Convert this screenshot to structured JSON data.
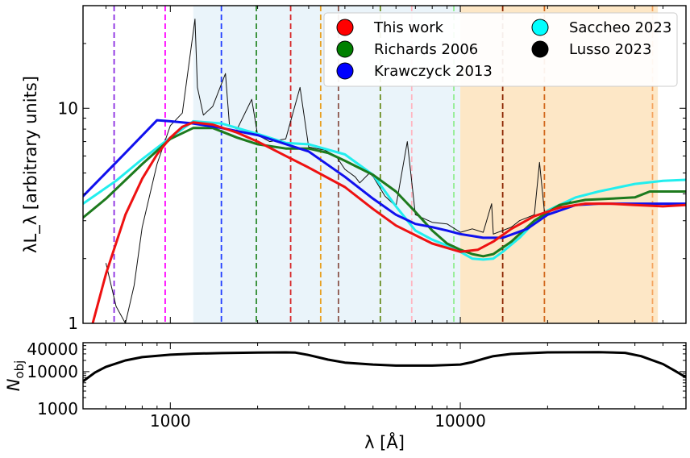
{
  "chart_data": [
    {
      "type": "line",
      "panel": "top",
      "ylabel": "λL_λ [arbitrary units]",
      "xscale": "log",
      "yscale": "log",
      "xlim": [
        500,
        60000
      ],
      "ylim": [
        1,
        30
      ],
      "y_ticks": [
        {
          "value": 1,
          "label": "1"
        },
        {
          "value": 10,
          "label": "10"
        }
      ],
      "shaded_regions": [
        {
          "from": 1200,
          "to": 10000,
          "color": "#eaf4fa"
        },
        {
          "from": 10000,
          "to": 48000,
          "color": "#fde7c6"
        }
      ],
      "vertical_lines": [
        {
          "x": 640,
          "color": "#8a2be2"
        },
        {
          "x": 960,
          "color": "#ff00ff"
        },
        {
          "x": 1500,
          "color": "#1f3cff"
        },
        {
          "x": 1980,
          "color": "#2e8b2e"
        },
        {
          "x": 2600,
          "color": "#d62728"
        },
        {
          "x": 3300,
          "color": "#e8a020"
        },
        {
          "x": 3800,
          "color": "#8c564b"
        },
        {
          "x": 5300,
          "color": "#6b8e23"
        },
        {
          "x": 6800,
          "color": "#ffb6c1"
        },
        {
          "x": 9500,
          "color": "#90ee90"
        },
        {
          "x": 14000,
          "color": "#8b2500"
        },
        {
          "x": 19500,
          "color": "#d2691e"
        },
        {
          "x": 46000,
          "color": "#f4a460"
        }
      ],
      "legend": {
        "position": "top-right",
        "entries": [
          {
            "label": "This work",
            "color": "#ff0000"
          },
          {
            "label": "Richards 2006",
            "color": "#008000"
          },
          {
            "label": "Krawczyck 2013",
            "color": "#0000ff"
          },
          {
            "label": "Saccheo 2023",
            "color": "#00ffff"
          },
          {
            "label": "Lusso 2023",
            "color": "#000000"
          }
        ]
      },
      "series": [
        {
          "name": "This work",
          "color": "#ee1111",
          "x": [
            540,
            600,
            700,
            800,
            900,
            1000,
            1100,
            1200,
            1400,
            1700,
            2000,
            2500,
            3000,
            4000,
            5000,
            6000,
            8000,
            10000,
            11500,
            13000,
            15000,
            18000,
            22000,
            27000,
            33000,
            40000,
            50000,
            60000
          ],
          "y": [
            1.0,
            1.7,
            3.2,
            4.7,
            6.1,
            7.3,
            8.2,
            8.6,
            8.4,
            7.7,
            7.0,
            6.0,
            5.3,
            4.3,
            3.4,
            2.85,
            2.35,
            2.15,
            2.2,
            2.4,
            2.75,
            3.15,
            3.45,
            3.6,
            3.6,
            3.55,
            3.5,
            3.55
          ]
        },
        {
          "name": "Richards 2006",
          "color": "#1d7a1d",
          "x": [
            500,
            600,
            800,
            1000,
            1200,
            1400,
            1700,
            2000,
            2500,
            3000,
            3500,
            4000,
            5000,
            6000,
            7000,
            8000,
            9000,
            10000,
            11000,
            12000,
            13000,
            15000,
            18000,
            22000,
            27000,
            33000,
            40000,
            45000,
            50000,
            60000
          ],
          "y": [
            3.1,
            3.8,
            5.5,
            7.2,
            8.1,
            8.1,
            7.3,
            6.8,
            6.5,
            6.5,
            6.2,
            5.7,
            4.9,
            4.1,
            3.3,
            2.7,
            2.35,
            2.2,
            2.1,
            2.05,
            2.1,
            2.4,
            3.0,
            3.55,
            3.75,
            3.8,
            3.85,
            4.1,
            4.1,
            4.1
          ]
        },
        {
          "name": "Krawczyck 2013",
          "color": "#1010ee",
          "x": [
            500,
            700,
            900,
            1000,
            1200,
            1500,
            2000,
            3000,
            4000,
            5000,
            6000,
            7000,
            8000,
            9000,
            10000,
            11000,
            12000,
            14000,
            17000,
            20000,
            25000,
            30000,
            40000,
            60000
          ],
          "y": [
            3.9,
            6.2,
            8.8,
            8.7,
            8.5,
            8.1,
            7.5,
            6.3,
            4.8,
            3.8,
            3.2,
            2.9,
            2.8,
            2.7,
            2.6,
            2.55,
            2.5,
            2.5,
            2.75,
            3.2,
            3.55,
            3.6,
            3.6,
            3.6
          ]
        },
        {
          "name": "Saccheo 2023",
          "color": "#22eeee",
          "x": [
            500,
            650,
            800,
            1000,
            1200,
            1500,
            2000,
            2500,
            3000,
            4000,
            5000,
            6000,
            7000,
            8000,
            9000,
            10000,
            11000,
            12000,
            13000,
            14000,
            16000,
            18000,
            20000,
            25000,
            30000,
            40000,
            50000,
            60000
          ],
          "y": [
            3.6,
            4.6,
            5.8,
            7.3,
            8.7,
            8.5,
            7.6,
            6.9,
            6.8,
            6.1,
            4.9,
            3.5,
            2.7,
            2.45,
            2.3,
            2.15,
            2.0,
            1.98,
            2.0,
            2.15,
            2.5,
            2.95,
            3.35,
            3.85,
            4.1,
            4.45,
            4.6,
            4.65
          ]
        },
        {
          "name": "Lusso 2023",
          "color": "#111111",
          "x": [
            600,
            650,
            700,
            750,
            800,
            900,
            1000,
            1100,
            1216,
            1240,
            1300,
            1400,
            1549,
            1600,
            1700,
            1909,
            2000,
            2200,
            2500,
            2800,
            3000,
            3400,
            3727,
            4000,
            4340,
            4500,
            4861,
            5007,
            5500,
            6000,
            6563,
            7000,
            8000,
            9000,
            10000,
            11000,
            12000,
            12820,
            13000,
            14000,
            15000,
            16000,
            18000,
            18750,
            19500,
            22000,
            24000
          ],
          "y": [
            1.9,
            1.2,
            1.0,
            1.5,
            2.8,
            5.5,
            8.3,
            9.5,
            26.0,
            12.5,
            9.3,
            10.2,
            14.5,
            8.3,
            8.0,
            11.0,
            7.5,
            7.0,
            7.2,
            12.5,
            6.6,
            6.4,
            6.0,
            5.2,
            4.8,
            4.5,
            5.0,
            4.8,
            3.9,
            3.5,
            7.0,
            3.2,
            2.95,
            2.9,
            2.65,
            2.75,
            2.65,
            3.6,
            2.6,
            2.7,
            2.8,
            3.0,
            3.2,
            5.6,
            3.3,
            3.5,
            3.7
          ]
        }
      ]
    },
    {
      "type": "line",
      "panel": "bottom",
      "xlabel": "λ [Å]",
      "ylabel": "N_obj",
      "xscale": "log",
      "yscale": "log",
      "xlim": [
        500,
        60000
      ],
      "ylim": [
        1000,
        60000
      ],
      "x_ticks": [
        {
          "value": 1000,
          "label": "1000"
        },
        {
          "value": 10000,
          "label": "10000"
        }
      ],
      "y_ticks": [
        {
          "value": 1000,
          "label": "1000"
        },
        {
          "value": 10000,
          "label": "10000"
        },
        {
          "value": 40000,
          "label": "40000"
        }
      ],
      "series": [
        {
          "name": "N_obj",
          "color": "#000000",
          "x": [
            500,
            550,
            600,
            700,
            800,
            1000,
            1200,
            1500,
            2000,
            2500,
            2700,
            3000,
            3500,
            4000,
            5000,
            6000,
            8000,
            10000,
            11000,
            12000,
            13000,
            15000,
            20000,
            30000,
            37000,
            42000,
            50000,
            55000,
            60000
          ],
          "y": [
            5500,
            9500,
            13500,
            20000,
            24500,
            28500,
            30500,
            31500,
            32500,
            33000,
            32500,
            28000,
            21000,
            17500,
            15500,
            14500,
            14500,
            15500,
            18000,
            22000,
            26000,
            30000,
            33000,
            33500,
            32000,
            26000,
            16000,
            10500,
            7000
          ]
        }
      ]
    }
  ]
}
